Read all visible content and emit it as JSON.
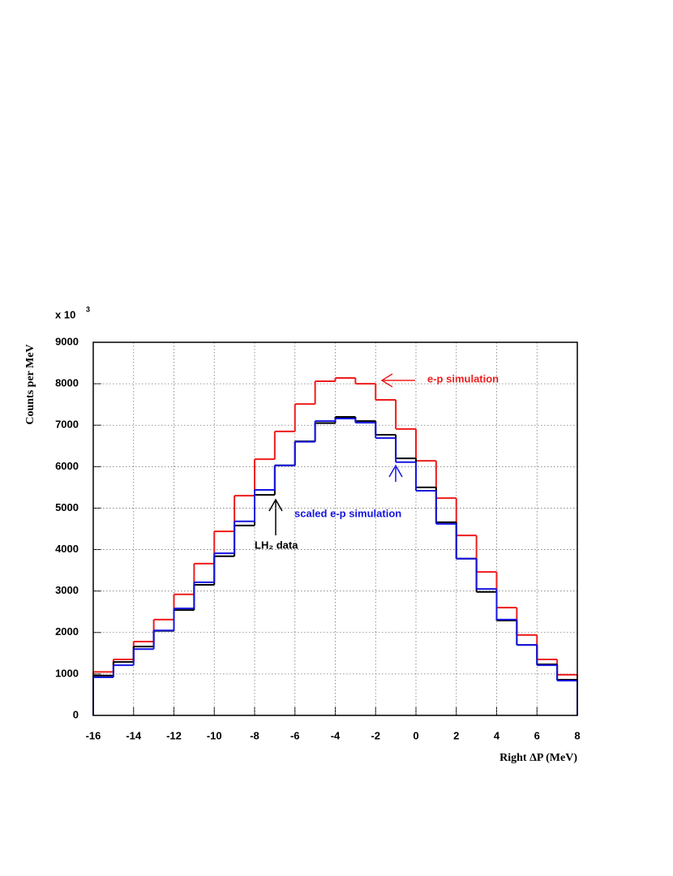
{
  "chart_data": {
    "type": "histogram",
    "y_label": "Counts per MeV",
    "x_label": "Right ΔP (MeV)",
    "y_multiplier": {
      "base": "x 10",
      "exponent": "3"
    },
    "bins": [
      -16,
      -15,
      -14,
      -13,
      -12,
      -11,
      -10,
      -9,
      -8,
      -7,
      -6,
      -5,
      -4,
      -3,
      -2,
      -1,
      0,
      1,
      2,
      3,
      4,
      5,
      6,
      7,
      8
    ],
    "series": [
      {
        "name": "e-p simulation",
        "color": "#ee1c1c",
        "values": [
          1050,
          1350,
          1780,
          2310,
          2920,
          3660,
          4440,
          5300,
          6180,
          6850,
          7510,
          8060,
          8140,
          8000,
          7610,
          6910,
          6140,
          5240,
          4340,
          3460,
          2600,
          1940,
          1350,
          980
        ]
      },
      {
        "name": "LH₂ data",
        "color": "#000000",
        "values": [
          960,
          1290,
          1660,
          2040,
          2540,
          3150,
          3840,
          4580,
          5320,
          6030,
          6610,
          7050,
          7200,
          7100,
          6770,
          6200,
          5500,
          4660,
          3780,
          2980,
          2290,
          1700,
          1230,
          860
        ]
      },
      {
        "name": "scaled e-p simulation",
        "color": "#1515e0",
        "values": [
          920,
          1210,
          1600,
          2050,
          2580,
          3210,
          3910,
          4680,
          5440,
          6030,
          6600,
          7100,
          7160,
          7060,
          6690,
          6110,
          5420,
          4620,
          3780,
          3050,
          2310,
          1700,
          1210,
          840
        ]
      }
    ],
    "xlim": [
      -16,
      8
    ],
    "ylim": [
      0,
      9000
    ],
    "xticks": [
      -16,
      -14,
      -12,
      -10,
      -8,
      -6,
      -4,
      -2,
      0,
      2,
      4,
      6,
      8
    ],
    "yticks": [
      0,
      1000,
      2000,
      3000,
      4000,
      5000,
      6000,
      7000,
      8000,
      9000
    ],
    "grid": true
  }
}
